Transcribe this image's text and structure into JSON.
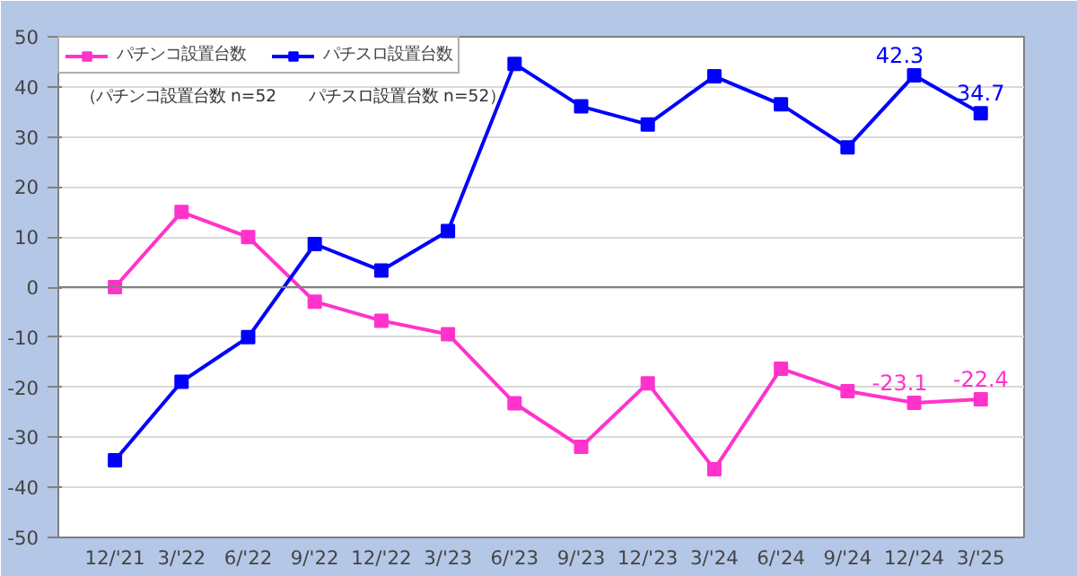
{
  "chart_data": {
    "type": "line",
    "categories": [
      "12/'21",
      "3/'22",
      "6/'22",
      "9/'22",
      "12/'22",
      "3/'23",
      "6/'23",
      "9/'23",
      "12/'23",
      "3/'24",
      "6/'24",
      "9/'24",
      "12/'24",
      "3/'25"
    ],
    "series": [
      {
        "name": "パチンコ設置台数",
        "color": "#ff33cc",
        "values": [
          0,
          15,
          10,
          -2.9,
          -6.7,
          -9.4,
          -23.2,
          -31.9,
          -19.2,
          -36.4,
          -16.3,
          -20.8,
          -23.1,
          -22.4
        ],
        "value_labels": [
          null,
          null,
          null,
          null,
          null,
          null,
          null,
          null,
          null,
          null,
          null,
          null,
          "-23.1",
          "-22.4"
        ]
      },
      {
        "name": "パチスロ設置台数",
        "color": "#0000ff",
        "values": [
          -34.6,
          -18.9,
          -10,
          8.6,
          3.3,
          11.2,
          44.6,
          36.1,
          32.5,
          42.1,
          36.5,
          27.9,
          42.3,
          34.7
        ],
        "value_labels": [
          null,
          null,
          null,
          null,
          null,
          null,
          null,
          null,
          null,
          null,
          null,
          null,
          "42.3",
          "34.7"
        ]
      }
    ],
    "ylim": [
      -50,
      50
    ],
    "yticks": [
      -50,
      -40,
      -30,
      -20,
      -10,
      0,
      10,
      20,
      30,
      40,
      50
    ],
    "grid": "y",
    "legend": "top left",
    "marker": "square",
    "line_style": "solid",
    "annotations": [
      "（パチンコ設置台数 n=52　　パチスロ設置台数 n=52）"
    ]
  }
}
